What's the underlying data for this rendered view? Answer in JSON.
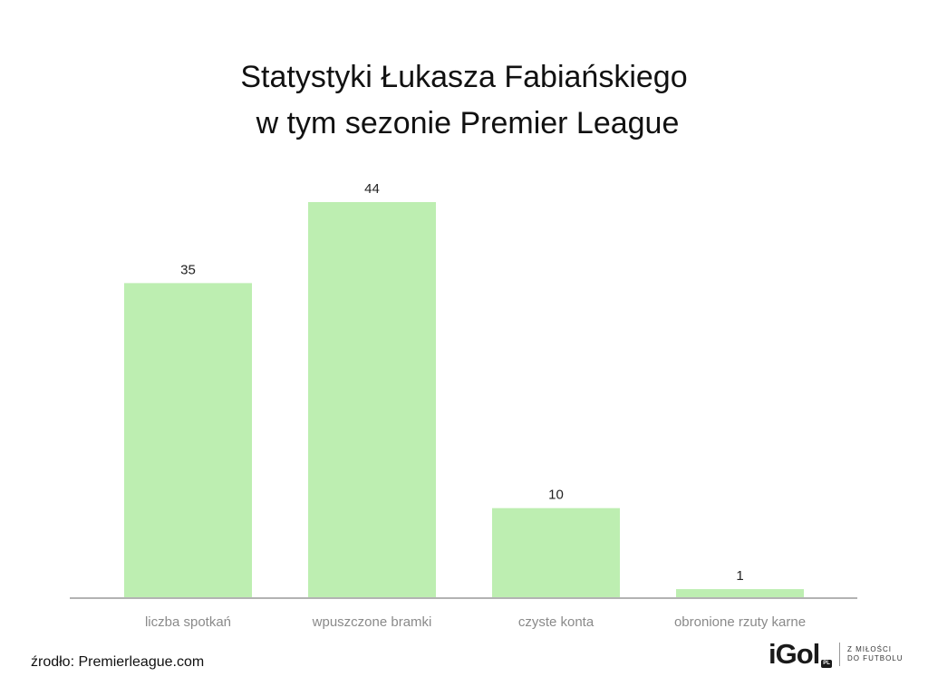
{
  "chart_data": {
    "type": "bar",
    "title": [
      "Statystyki Łukasza Fabiańskiego",
      "w tym sezonie Premier League"
    ],
    "categories": [
      "liczba spotkań",
      "wpuszczone bramki",
      "czyste konta",
      "obronione rzuty karne"
    ],
    "values": [
      35,
      44,
      10,
      1
    ],
    "data_labels": [
      "35",
      "44",
      "10",
      "1"
    ],
    "ylim": [
      0,
      44
    ],
    "grid": false,
    "legend": "none",
    "bar_color": "#bdeeb1",
    "axis_color": "#b3b3b3"
  },
  "footer": {
    "source": "źrodło: Premierleague.com",
    "logo_word": "iGol",
    "logo_badge": "PL",
    "tagline_1": "Z MIŁOŚCI",
    "tagline_2": "DO FUTBOLU"
  }
}
